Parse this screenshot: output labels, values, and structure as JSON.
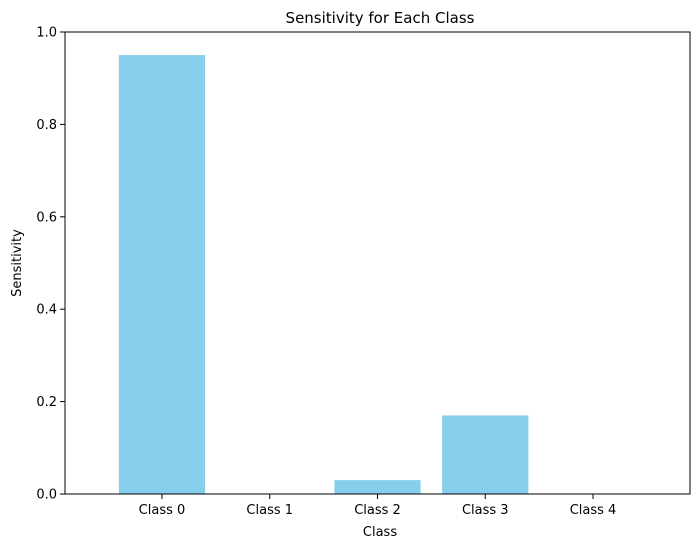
{
  "chart_data": {
    "type": "bar",
    "title": "Sensitivity for Each Class",
    "xlabel": "Class",
    "ylabel": "Sensitivity",
    "categories": [
      "Class 0",
      "Class 1",
      "Class 2",
      "Class 3",
      "Class 4"
    ],
    "values": [
      0.95,
      0.0,
      0.03,
      0.17,
      0.0
    ],
    "ylim": [
      0,
      1.0
    ],
    "yticks": [
      "0.0",
      "0.2",
      "0.4",
      "0.6",
      "0.8",
      "1.0"
    ],
    "bar_color": "#87ceeb",
    "grid": false,
    "legend": "none"
  }
}
